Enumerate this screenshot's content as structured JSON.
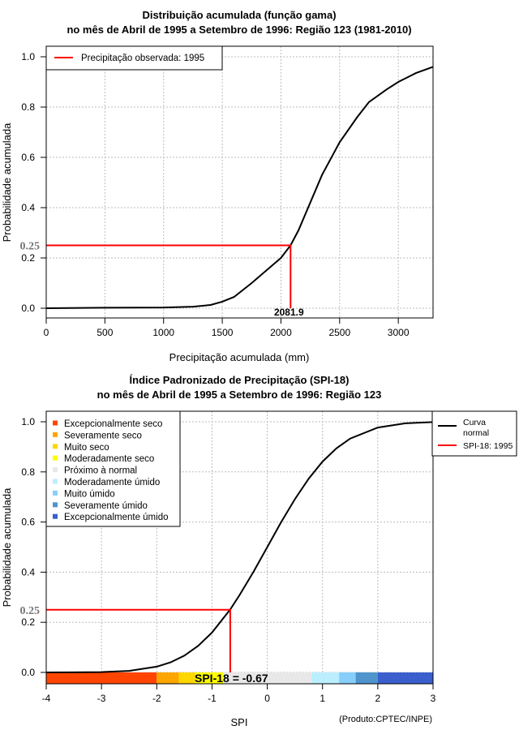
{
  "chart_data": [
    {
      "type": "line",
      "title": [
        "Distribuição acumulada (função gama)",
        "no mês de Abril de 1995 a Setembro de 1996: Região 123 (1981-2010)"
      ],
      "xlabel": "Precipitação acumulada (mm)",
      "ylabel": "Probabilidade acumulada",
      "xlim": [
        0,
        3296
      ],
      "ylim": [
        0,
        1
      ],
      "xticks": [
        "0",
        "500",
        "1000",
        "1500",
        "2000",
        "2500",
        "3000"
      ],
      "yticks": [
        "0.0",
        "0.2",
        "0.4",
        "0.6",
        "0.8",
        "1.0"
      ],
      "grid": true,
      "legend": {
        "placement": "top-left",
        "entries": [
          {
            "label": "Precipitação observada: 1995",
            "color": "#ff0000"
          }
        ]
      },
      "curve": {
        "x": [
          0,
          500,
          1000,
          1250,
          1400,
          1500,
          1600,
          1750,
          1900,
          2000,
          2082,
          2150,
          2250,
          2350,
          2500,
          2650,
          2750,
          2900,
          3000,
          3150,
          3296
        ],
        "y": [
          0.0,
          0.002,
          0.003,
          0.006,
          0.013,
          0.026,
          0.045,
          0.1,
          0.16,
          0.2,
          0.25,
          0.31,
          0.42,
          0.53,
          0.66,
          0.76,
          0.82,
          0.87,
          0.9,
          0.935,
          0.96
        ]
      },
      "observed": {
        "x": 2081.9,
        "y": 0.25,
        "x_label": "2081.9",
        "y_label": "0.25"
      }
    },
    {
      "type": "line",
      "title": [
        "Índice Padronizado de Precipitação (SPI-18)",
        "no mês de Abril de 1995 a Setembro de 1996: Região 123"
      ],
      "xlabel": "SPI",
      "ylabel": "Probabilidade acumulada",
      "xlim": [
        -4,
        3
      ],
      "ylim": [
        0,
        1
      ],
      "xticks": [
        "-4",
        "-3",
        "-2",
        "-1",
        "0",
        "1",
        "2",
        "3"
      ],
      "yticks": [
        "0.0",
        "0.2",
        "0.4",
        "0.6",
        "0.8",
        "1.0"
      ],
      "grid": true,
      "legend_curves": {
        "placement": "right-outside",
        "entries": [
          {
            "label": "Curva normal",
            "lines": [
              "Curva",
              "normal"
            ],
            "color": "#000000"
          },
          {
            "label": "SPI-18: 1995",
            "color": "#ff0000"
          }
        ]
      },
      "legend_classes": {
        "placement": "top-left",
        "entries": [
          {
            "label": "Excepcionalmente seco",
            "color": "#ff4500",
            "from": -4,
            "to": -2
          },
          {
            "label": "Severamente seco",
            "color": "#ffa500",
            "from": -2,
            "to": -1.6
          },
          {
            "label": "Muito seco",
            "color": "#ffd700",
            "from": -1.6,
            "to": -1.3
          },
          {
            "label": "Moderadamente seco",
            "color": "#ffff00",
            "from": -1.3,
            "to": -0.8
          },
          {
            "label": "Próximo à normal",
            "color": "#e8e8e8",
            "from": -0.8,
            "to": 0.8
          },
          {
            "label": "Moderadamente úmido",
            "color": "#bbeeff",
            "from": 0.8,
            "to": 1.3
          },
          {
            "label": "Muito úmido",
            "color": "#87cefa",
            "from": 1.3,
            "to": 1.6
          },
          {
            "label": "Severamente úmido",
            "color": "#4f94cd",
            "from": 1.6,
            "to": 2
          },
          {
            "label": "Excepcionalmente úmido",
            "color": "#3a5fcd",
            "from": 2,
            "to": 3
          }
        ]
      },
      "curve": {
        "x": [
          -4,
          -3.5,
          -3,
          -2.5,
          -2,
          -1.75,
          -1.5,
          -1.25,
          -1,
          -0.67,
          -0.5,
          -0.25,
          0,
          0.25,
          0.5,
          0.75,
          1,
          1.25,
          1.5,
          2,
          2.5,
          3
        ],
        "y": [
          3e-05,
          0.0002,
          0.0013,
          0.006,
          0.023,
          0.04,
          0.067,
          0.106,
          0.159,
          0.251,
          0.309,
          0.401,
          0.5,
          0.599,
          0.691,
          0.773,
          0.841,
          0.894,
          0.933,
          0.977,
          0.994,
          0.9987
        ]
      },
      "observed": {
        "x": -0.67,
        "y": 0.25,
        "y_label": "0.25",
        "value_label": "SPI-18 = -0.67"
      },
      "credit": "(Produto:CPTEC/INPE)"
    }
  ]
}
